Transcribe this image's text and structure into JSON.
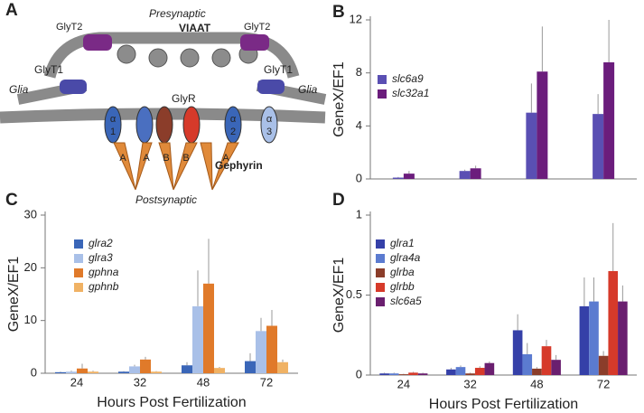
{
  "diagram": {
    "panel": "A",
    "presynaptic": "Presynaptic",
    "viaat": "VIAAT",
    "glyt2_left": "GlyT2",
    "glyt2_right": "GlyT2",
    "glyt1_left": "GlyT1",
    "glyt1_right": "GlyT1",
    "glia_left": "Glia",
    "glia_right": "Glia",
    "glyr": "GlyR",
    "gephyrin": "Gephyrin",
    "postsynaptic": "Postsynaptic",
    "subunits": [
      "α",
      "1",
      "α",
      "2",
      "α",
      "3"
    ],
    "domains": [
      "A",
      "A",
      "B",
      "B",
      "A"
    ]
  },
  "chart_data": [
    {
      "type": "bar",
      "panel": "B",
      "ylabel": "GeneX/EF1",
      "categories": [
        null,
        null,
        null,
        null
      ],
      "ylim": [
        0,
        12
      ],
      "yticks": [
        0,
        4,
        8,
        12
      ],
      "series": [
        {
          "name": "slc6a9",
          "color": "#5a4fb3",
          "values": [
            0.1,
            0.6,
            5.0,
            4.9
          ],
          "errors": [
            0.05,
            0.1,
            2.2,
            1.5
          ]
        },
        {
          "name": "slc32a1",
          "color": "#6b1d7c",
          "values": [
            0.4,
            0.8,
            8.1,
            8.8
          ],
          "errors": [
            0.2,
            0.2,
            3.4,
            3.2
          ]
        }
      ]
    },
    {
      "type": "bar",
      "panel": "C",
      "ylabel": "GeneX/EF1",
      "xlabel": "Hours Post Fertilization",
      "categories": [
        "24",
        "32",
        "48",
        "72"
      ],
      "ylim": [
        0,
        30
      ],
      "yticks": [
        0,
        10,
        20,
        30
      ],
      "series": [
        {
          "name": "glra2",
          "color": "#3a66b8",
          "values": [
            0.2,
            0.3,
            1.5,
            2.3
          ],
          "errors": [
            0.1,
            0.1,
            0.6,
            1.5
          ]
        },
        {
          "name": "glra3",
          "color": "#a9c0e8",
          "values": [
            0.3,
            1.3,
            12.7,
            8.0
          ],
          "errors": [
            0.2,
            0.3,
            6.8,
            2.5
          ]
        },
        {
          "name": "gphna",
          "color": "#e07a2a",
          "values": [
            0.9,
            2.6,
            17.0,
            9.0
          ],
          "errors": [
            0.9,
            0.5,
            8.5,
            3.0
          ]
        },
        {
          "name": "gphnb",
          "color": "#f0b264",
          "values": [
            0.3,
            0.3,
            1.0,
            2.1
          ],
          "errors": [
            0.2,
            0.1,
            0.2,
            0.5
          ]
        }
      ]
    },
    {
      "type": "bar",
      "panel": "D",
      "ylabel": "GeneX/EF1",
      "xlabel": "Hours Post Fertilization",
      "categories": [
        "24",
        "32",
        "48",
        "72"
      ],
      "ylim": [
        0,
        1
      ],
      "yticks": [
        0,
        0.5,
        1
      ],
      "series": [
        {
          "name": "glra1",
          "color": "#3540a8",
          "values": [
            0.01,
            0.035,
            0.28,
            0.43
          ],
          "errors": [
            0.005,
            0.01,
            0.1,
            0.18
          ]
        },
        {
          "name": "glra4a",
          "color": "#5b7bd0",
          "values": [
            0.01,
            0.05,
            0.13,
            0.46
          ],
          "errors": [
            0.005,
            0.01,
            0.07,
            0.15
          ]
        },
        {
          "name": "glrba",
          "color": "#8b3d2a",
          "values": [
            0.005,
            0.01,
            0.04,
            0.12
          ],
          "errors": [
            0.003,
            0.005,
            0.01,
            0.03
          ]
        },
        {
          "name": "glrbb",
          "color": "#d63a2a",
          "values": [
            0.015,
            0.045,
            0.18,
            0.65
          ],
          "errors": [
            0.005,
            0.01,
            0.04,
            0.3
          ]
        },
        {
          "name": "slc6a5",
          "color": "#6a1f6f",
          "values": [
            0.01,
            0.075,
            0.095,
            0.46
          ],
          "errors": [
            0.005,
            0.01,
            0.03,
            0.1
          ]
        }
      ]
    }
  ]
}
